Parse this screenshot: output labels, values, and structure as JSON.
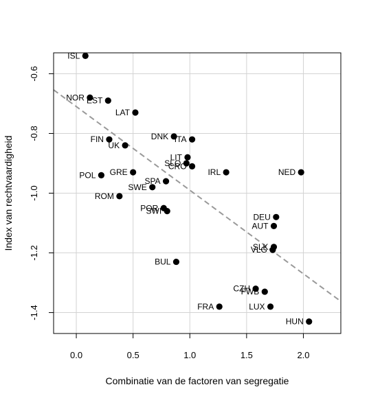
{
  "chart_data": {
    "type": "scatter",
    "title": "",
    "xlabel": "Combinatie van de factoren van segregatie",
    "ylabel": "Index van rechtvaardigheid",
    "xlim": [
      -0.2,
      2.33
    ],
    "ylim": [
      -1.47,
      -0.53
    ],
    "xticks": [
      0.0,
      0.5,
      1.0,
      1.5,
      2.0
    ],
    "xtick_labels": [
      "0.0",
      "0.5",
      "1.0",
      "1.5",
      "2.0"
    ],
    "yticks": [
      -0.6,
      -0.8,
      -1.0,
      -1.2,
      -1.4
    ],
    "ytick_labels": [
      "-0.6",
      "-0.8",
      "-1.0",
      "-1.2",
      "-1.4"
    ],
    "grid": true,
    "legend": "none",
    "trend_line": {
      "style": "dashed",
      "color": "#999999",
      "intercept": -0.71,
      "slope": -0.28
    },
    "points": [
      {
        "label": "ISL",
        "x": 0.08,
        "y": -0.54,
        "label_side": "left"
      },
      {
        "label": "NOR",
        "x": 0.12,
        "y": -0.68,
        "label_side": "left"
      },
      {
        "label": "EST",
        "x": 0.28,
        "y": -0.69,
        "label_side": "left"
      },
      {
        "label": "LAT",
        "x": 0.52,
        "y": -0.73,
        "label_side": "left"
      },
      {
        "label": "FIN",
        "x": 0.29,
        "y": -0.82,
        "label_side": "left"
      },
      {
        "label": "UK",
        "x": 0.43,
        "y": -0.84,
        "label_side": "left"
      },
      {
        "label": "DNK",
        "x": 0.86,
        "y": -0.81,
        "label_side": "left"
      },
      {
        "label": "ITA",
        "x": 1.02,
        "y": -0.82,
        "label_side": "left"
      },
      {
        "label": "LIT",
        "x": 0.98,
        "y": -0.88,
        "label_side": "left"
      },
      {
        "label": "SLO",
        "x": 0.97,
        "y": -0.9,
        "label_side": "left"
      },
      {
        "label": "CRO",
        "x": 1.02,
        "y": -0.91,
        "label_side": "left"
      },
      {
        "label": "GRE",
        "x": 0.5,
        "y": -0.93,
        "label_side": "left"
      },
      {
        "label": "POL",
        "x": 0.22,
        "y": -0.94,
        "label_side": "left"
      },
      {
        "label": "IRL",
        "x": 1.32,
        "y": -0.93,
        "label_side": "left"
      },
      {
        "label": "NED",
        "x": 1.98,
        "y": -0.93,
        "label_side": "left"
      },
      {
        "label": "SPA",
        "x": 0.79,
        "y": -0.96,
        "label_side": "left"
      },
      {
        "label": "SWE",
        "x": 0.67,
        "y": -0.98,
        "label_side": "left"
      },
      {
        "label": "ROM",
        "x": 0.38,
        "y": -1.01,
        "label_side": "left"
      },
      {
        "label": "POR",
        "x": 0.77,
        "y": -1.05,
        "label_side": "left"
      },
      {
        "label": "SWI",
        "x": 0.8,
        "y": -1.06,
        "label_side": "left"
      },
      {
        "label": "DEU",
        "x": 1.76,
        "y": -1.08,
        "label_side": "left"
      },
      {
        "label": "AUT",
        "x": 1.74,
        "y": -1.11,
        "label_side": "left"
      },
      {
        "label": "SLK",
        "x": 1.74,
        "y": -1.18,
        "label_side": "left"
      },
      {
        "label": "VLG",
        "x": 1.73,
        "y": -1.19,
        "label_side": "left"
      },
      {
        "label": "BUL",
        "x": 0.88,
        "y": -1.23,
        "label_side": "left"
      },
      {
        "label": "CZH",
        "x": 1.58,
        "y": -1.32,
        "label_side": "left"
      },
      {
        "label": "FWB",
        "x": 1.66,
        "y": -1.33,
        "label_side": "left"
      },
      {
        "label": "FRA",
        "x": 1.26,
        "y": -1.38,
        "label_side": "left"
      },
      {
        "label": "LUX",
        "x": 1.71,
        "y": -1.38,
        "label_side": "left"
      },
      {
        "label": "HUN",
        "x": 2.05,
        "y": -1.43,
        "label_side": "left"
      }
    ]
  }
}
